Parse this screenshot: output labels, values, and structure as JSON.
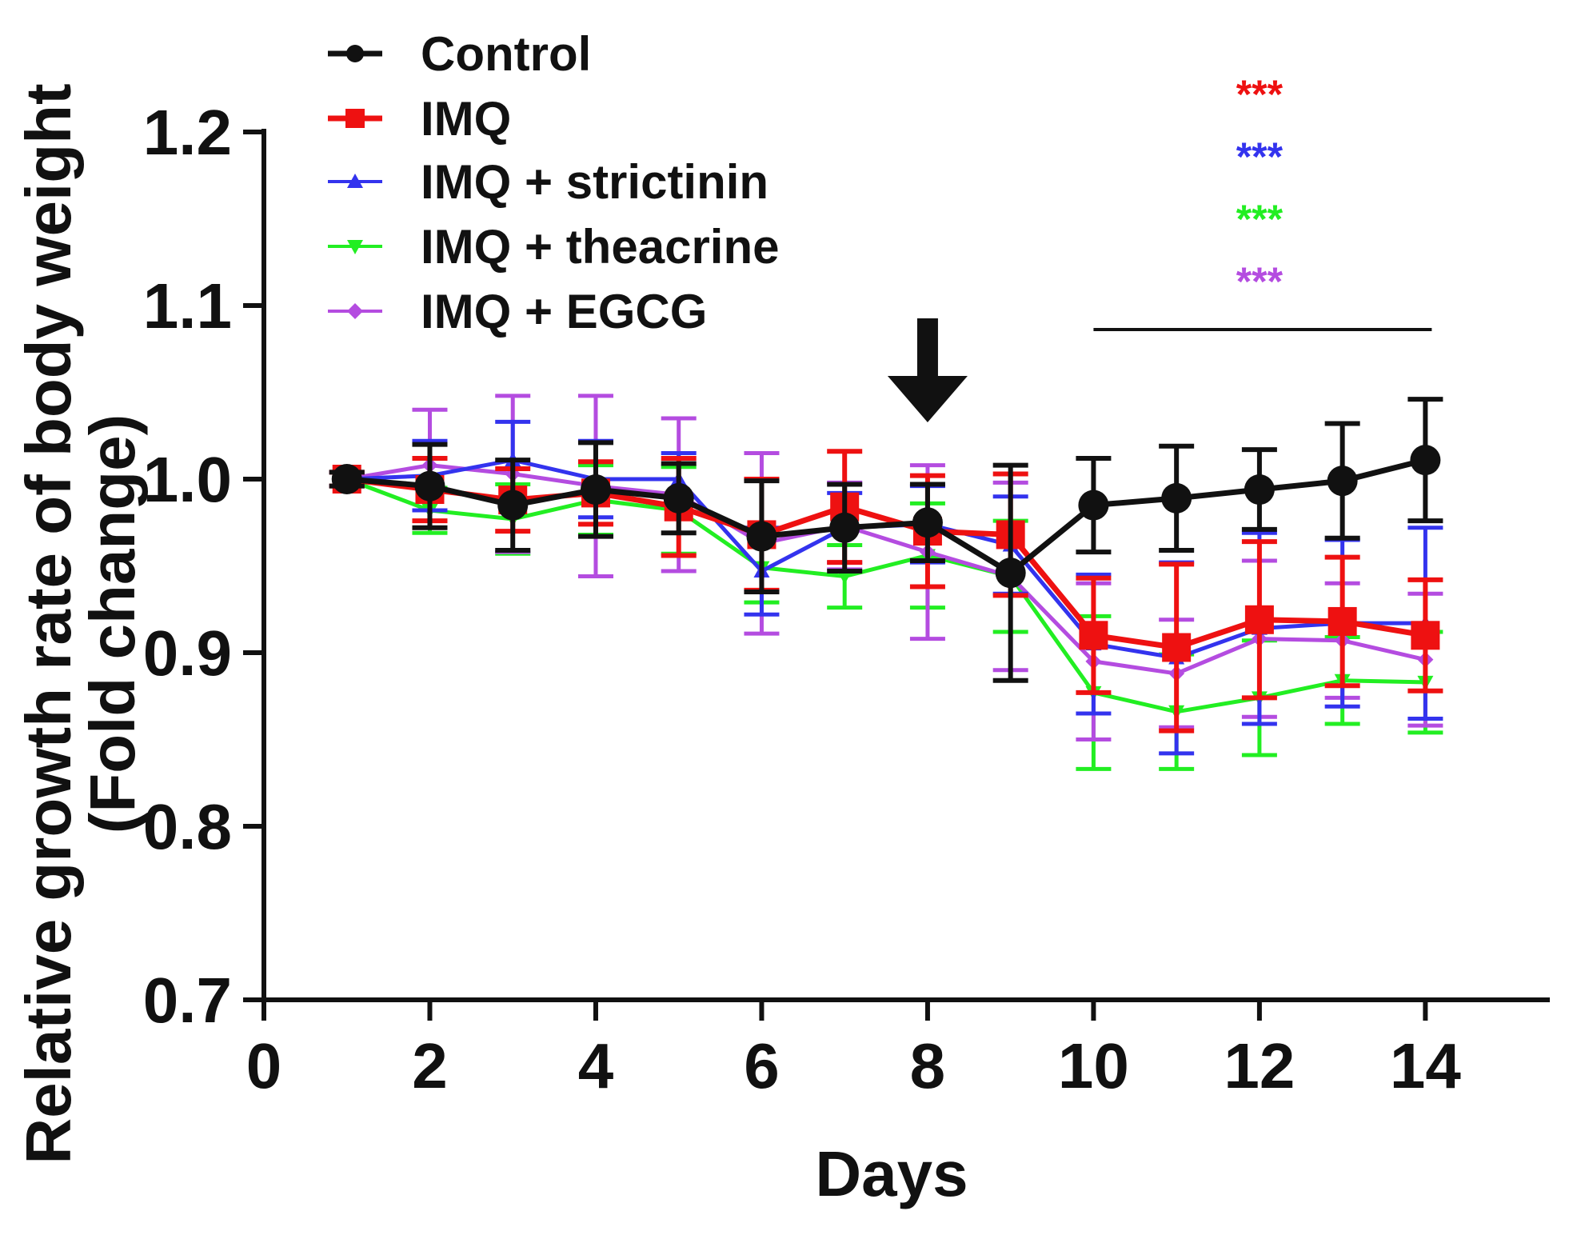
{
  "chart_data": {
    "type": "line",
    "title": "",
    "xlabel": "Days",
    "ylabel_line1": "Relative growth rate of body weight",
    "ylabel_line2": "(Fold change)",
    "xlim": [
      0,
      15.5
    ],
    "ylim": [
      0.7,
      1.2
    ],
    "xticks": [
      0,
      2,
      4,
      6,
      8,
      10,
      12,
      14
    ],
    "xtick_labels": [
      "0",
      "2",
      "4",
      "6",
      "8",
      "10",
      "12",
      "14"
    ],
    "yticks": [
      0.7,
      0.8,
      0.9,
      1.0,
      1.1,
      1.2
    ],
    "ytick_labels": [
      "0.7",
      "0.8",
      "0.9",
      "1.0",
      "1.1",
      "1.2"
    ],
    "x": [
      1,
      2,
      3,
      4,
      5,
      6,
      7,
      8,
      9,
      10,
      11,
      12,
      13,
      14
    ],
    "legend_position": "top-left",
    "grid": false,
    "series": [
      {
        "name": "IMQ + theacrine",
        "color": "#22ee22",
        "marker": "triangle-down",
        "values": [
          1.0,
          0.982,
          0.977,
          0.988,
          0.982,
          0.949,
          0.944,
          0.956,
          0.944,
          0.877,
          0.866,
          0.874,
          0.884,
          0.883
        ],
        "errors": [
          0.004,
          0.013,
          0.02,
          0.02,
          0.025,
          0.02,
          0.018,
          0.03,
          0.032,
          0.044,
          0.033,
          0.033,
          0.025,
          0.029
        ]
      },
      {
        "name": "IMQ + EGCG",
        "color": "#b44ce0",
        "marker": "diamond",
        "values": [
          1.0,
          1.008,
          1.003,
          0.996,
          0.991,
          0.963,
          0.973,
          0.958,
          0.944,
          0.895,
          0.888,
          0.908,
          0.907,
          0.896
        ],
        "errors": [
          0.004,
          0.032,
          0.045,
          0.052,
          0.044,
          0.052,
          0.025,
          0.05,
          0.054,
          0.045,
          0.031,
          0.045,
          0.033,
          0.038
        ]
      },
      {
        "name": "IMQ + strictinin",
        "color": "#3333ee",
        "marker": "triangle-up",
        "values": [
          1.0,
          1.002,
          1.011,
          1.0,
          1.0,
          0.947,
          0.972,
          0.974,
          0.962,
          0.905,
          0.897,
          0.914,
          0.917,
          0.917
        ],
        "errors": [
          0.004,
          0.02,
          0.022,
          0.022,
          0.015,
          0.025,
          0.02,
          0.022,
          0.028,
          0.04,
          0.055,
          0.055,
          0.048,
          0.055
        ]
      },
      {
        "name": "IMQ",
        "color": "#ee1111",
        "marker": "square",
        "values": [
          1.0,
          0.994,
          0.988,
          0.992,
          0.984,
          0.968,
          0.984,
          0.97,
          0.968,
          0.91,
          0.903,
          0.919,
          0.918,
          0.91
        ],
        "errors": [
          0.004,
          0.018,
          0.018,
          0.018,
          0.028,
          0.032,
          0.032,
          0.032,
          0.035,
          0.033,
          0.048,
          0.045,
          0.037,
          0.032
        ]
      },
      {
        "name": "Control",
        "color": "#111111",
        "marker": "circle",
        "values": [
          1.0,
          0.996,
          0.985,
          0.994,
          0.989,
          0.967,
          0.972,
          0.975,
          0.946,
          0.985,
          0.989,
          0.994,
          0.999,
          1.011
        ],
        "errors": [
          0.004,
          0.024,
          0.026,
          0.027,
          0.02,
          0.032,
          0.025,
          0.022,
          0.062,
          0.027,
          0.03,
          0.023,
          0.033,
          0.035
        ]
      }
    ],
    "annotations": {
      "arrow_at_day": 8,
      "significance_bar_from_day": 10,
      "significance_bar_to_day": 14,
      "significance_marks": [
        {
          "text": "***",
          "color": "#ee1111"
        },
        {
          "text": "***",
          "color": "#3333ee"
        },
        {
          "text": "***",
          "color": "#22ee22"
        },
        {
          "text": "***",
          "color": "#b44ce0"
        }
      ]
    }
  },
  "legend": {
    "entries": [
      {
        "label": "Control",
        "color": "#111111",
        "marker": "circle"
      },
      {
        "label": "IMQ",
        "color": "#ee1111",
        "marker": "square"
      },
      {
        "label": "IMQ + strictinin",
        "color": "#3333ee",
        "marker": "triangle-up"
      },
      {
        "label": "IMQ + theacrine",
        "color": "#22ee22",
        "marker": "triangle-down"
      },
      {
        "label": "IMQ + EGCG",
        "color": "#b44ce0",
        "marker": "diamond"
      }
    ]
  }
}
